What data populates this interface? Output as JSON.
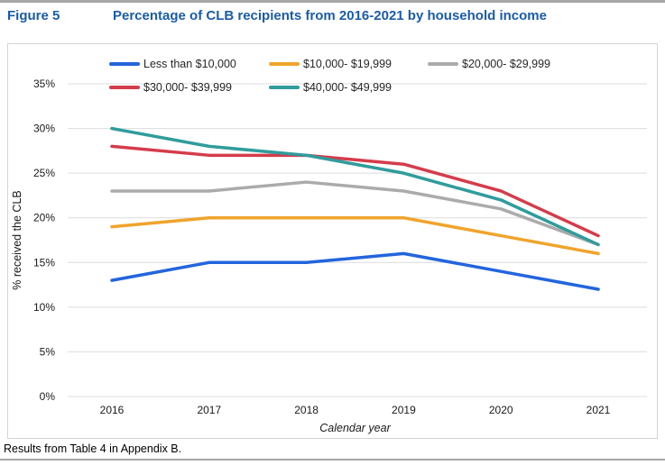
{
  "figure": {
    "label": "Figure 5",
    "title": "Percentage of CLB recipients from 2016-2021 by household income"
  },
  "footer": {
    "text": "Results from Table 4 in Appendix B."
  },
  "colors": {
    "title_blue": "#1a5ca8",
    "grid": "#dcdcdc",
    "box_border": "#d4d4d4",
    "tick_text": "#1a1a1a"
  },
  "chart_data": {
    "type": "line",
    "title": "Percentage of CLB recipients from 2016-2021 by household income",
    "x": [
      "2016",
      "2017",
      "2018",
      "2019",
      "2020",
      "2021"
    ],
    "xlabel": "Calendar year",
    "ylabel": "% received the CLB",
    "ylim": [
      0,
      35
    ],
    "ytick_step": 5,
    "ytick_labels": [
      "0%",
      "5%",
      "10%",
      "15%",
      "20%",
      "25%",
      "30%",
      "35%"
    ],
    "grid": true,
    "legend_position": "top",
    "series": [
      {
        "name": "Less than $10,000",
        "color": "#2365dd",
        "values": [
          13,
          15,
          15,
          16,
          14,
          12
        ]
      },
      {
        "name": "$10,000- $19,999",
        "color": "#f0a42c",
        "values": [
          19,
          20,
          20,
          20,
          18,
          16
        ]
      },
      {
        "name": "$20,000- $29,999",
        "color": "#ababab",
        "values": [
          23,
          23,
          24,
          23,
          21,
          17
        ]
      },
      {
        "name": "$30,000- $39,999",
        "color": "#d53c4b",
        "values": [
          28,
          27,
          27,
          26,
          23,
          18
        ]
      },
      {
        "name": "$40,000- $49,999",
        "color": "#309c9c",
        "values": [
          30,
          28,
          27,
          25,
          22,
          17
        ]
      }
    ]
  }
}
